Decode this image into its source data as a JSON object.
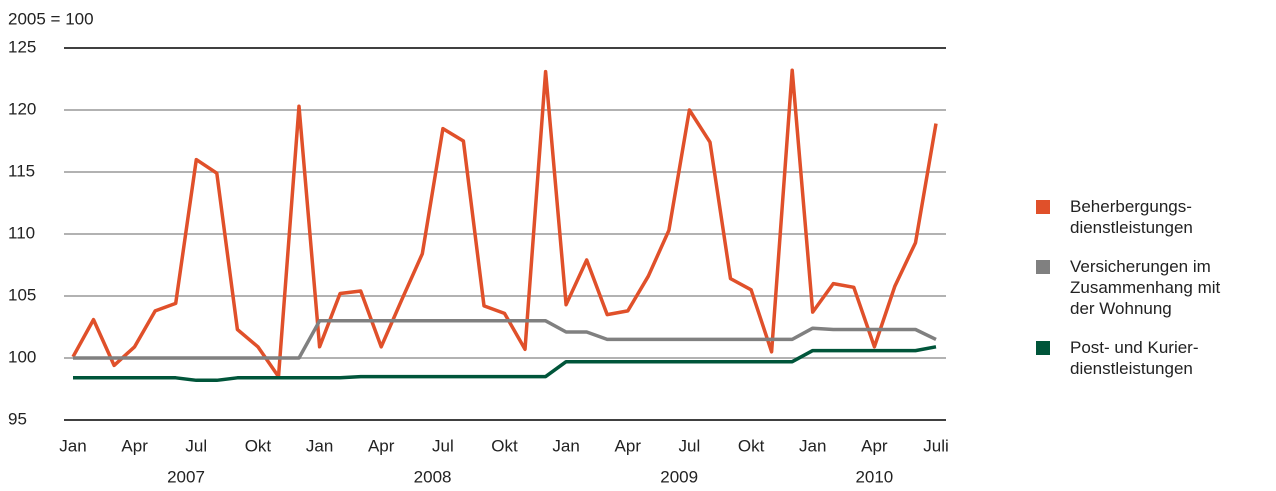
{
  "chart_data": {
    "type": "line",
    "y_label": "2005 = 100",
    "categories": [
      "Jan",
      null,
      null,
      "Apr",
      null,
      null,
      "Jul",
      null,
      null,
      "Okt",
      null,
      null,
      "Jan",
      null,
      null,
      "Apr",
      null,
      null,
      "Jul",
      null,
      null,
      "Okt",
      null,
      null,
      "Jan",
      null,
      null,
      "Apr",
      null,
      null,
      "Jul",
      null,
      null,
      "Okt",
      null,
      null,
      "Jan",
      null,
      null,
      "Apr",
      null,
      null,
      "Juli"
    ],
    "year_labels": [
      "2007",
      "2008",
      "2009",
      "2010"
    ],
    "ylim": [
      95,
      125
    ],
    "yticks": [
      95,
      100,
      105,
      110,
      115,
      120,
      125
    ],
    "grid": true,
    "legend": "right",
    "series": [
      {
        "name": "Beherbergungs-dienstleistungen",
        "color": "#e0502a",
        "values": [
          100.1,
          103.1,
          99.4,
          100.9,
          103.8,
          104.4,
          116.0,
          114.9,
          102.3,
          100.9,
          98.5,
          120.3,
          100.9,
          105.2,
          105.4,
          100.9,
          104.7,
          108.4,
          118.5,
          117.5,
          104.2,
          103.6,
          100.7,
          123.1,
          104.3,
          107.9,
          103.5,
          103.8,
          106.6,
          110.3,
          120.0,
          117.4,
          106.4,
          105.5,
          100.5,
          123.2,
          103.7,
          106.0,
          105.7,
          100.9,
          105.8,
          109.3,
          118.9
        ]
      },
      {
        "name": "Versicherungen im Zusammenhang mit der Wohnung",
        "color": "#808080",
        "values": [
          100.0,
          100.0,
          100.0,
          100.0,
          100.0,
          100.0,
          100.0,
          100.0,
          100.0,
          100.0,
          100.0,
          100.0,
          103.0,
          103.0,
          103.0,
          103.0,
          103.0,
          103.0,
          103.0,
          103.0,
          103.0,
          103.0,
          103.0,
          103.0,
          102.1,
          102.1,
          101.5,
          101.5,
          101.5,
          101.5,
          101.5,
          101.5,
          101.5,
          101.5,
          101.5,
          101.5,
          102.4,
          102.3,
          102.3,
          102.3,
          102.3,
          102.3,
          101.5
        ]
      },
      {
        "name": "Post- und Kurier-dienstleistungen",
        "color": "#00553a",
        "values": [
          98.4,
          98.4,
          98.4,
          98.4,
          98.4,
          98.4,
          98.2,
          98.2,
          98.4,
          98.4,
          98.4,
          98.4,
          98.4,
          98.4,
          98.5,
          98.5,
          98.5,
          98.5,
          98.5,
          98.5,
          98.5,
          98.5,
          98.5,
          98.5,
          99.7,
          99.7,
          99.7,
          99.7,
          99.7,
          99.7,
          99.7,
          99.7,
          99.7,
          99.7,
          99.7,
          99.7,
          100.6,
          100.6,
          100.6,
          100.6,
          100.6,
          100.6,
          100.9
        ]
      }
    ]
  }
}
